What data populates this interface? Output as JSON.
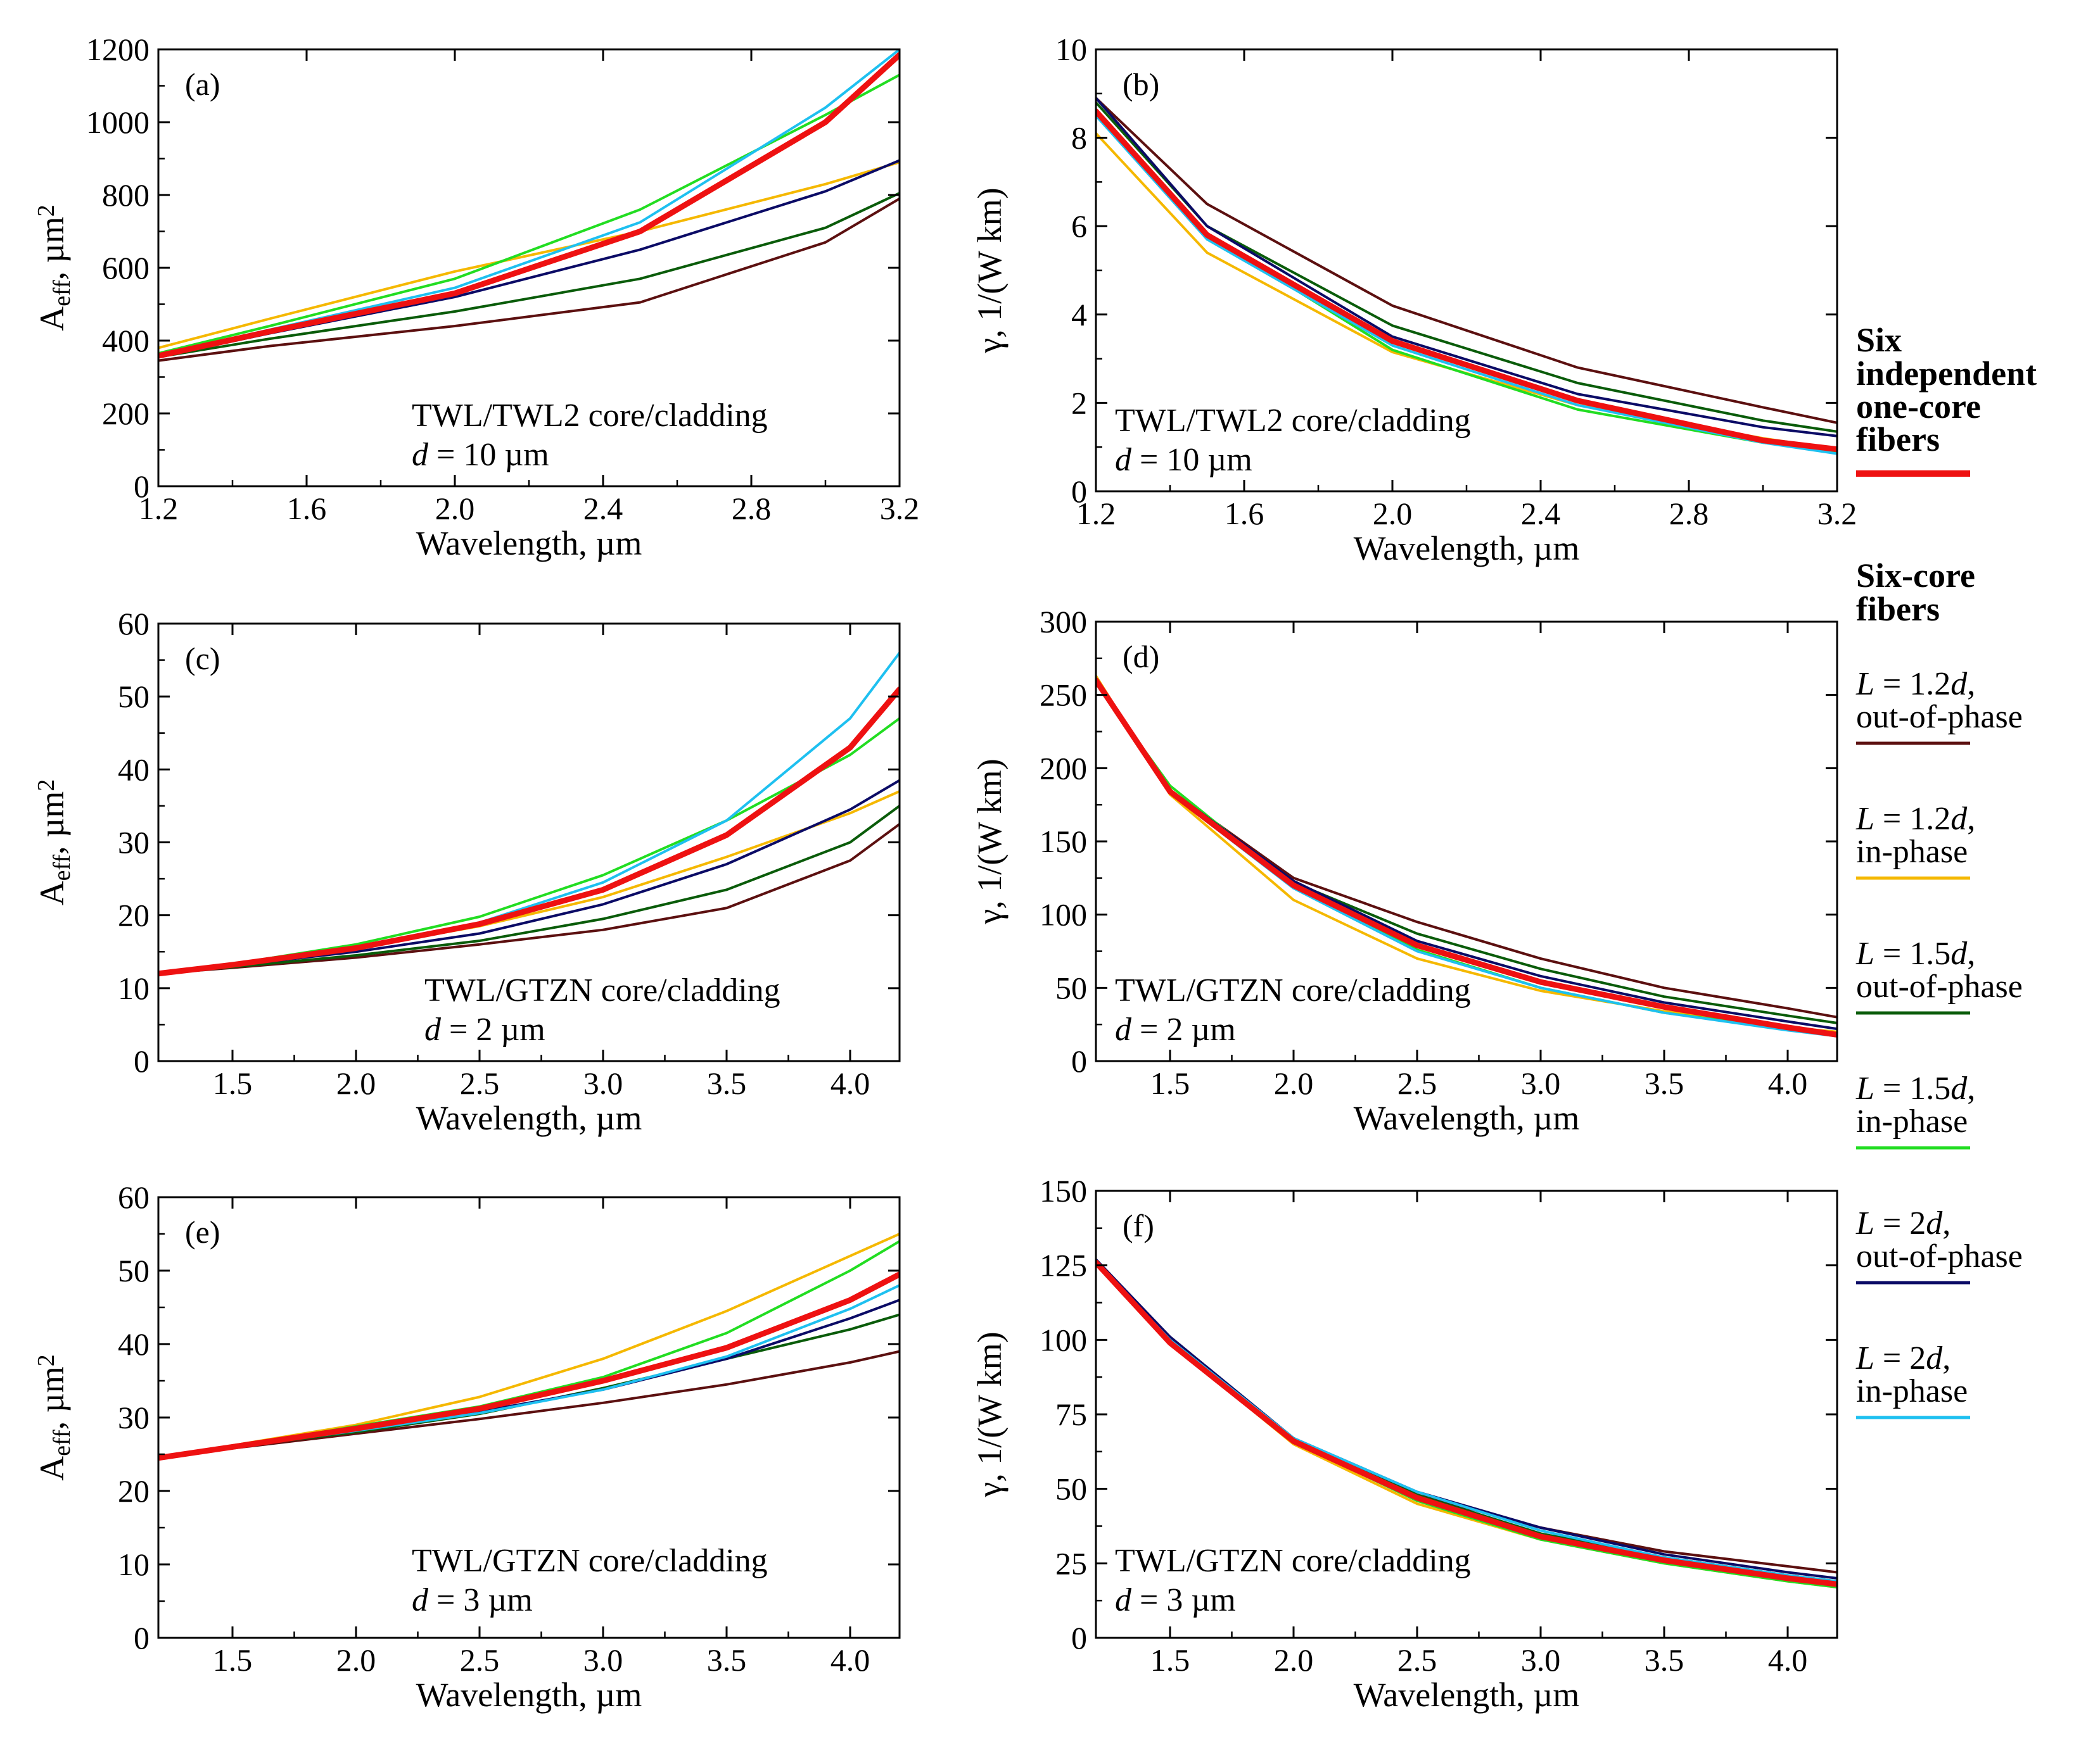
{
  "chart_data": [
    {
      "panel": "(a)",
      "type": "line",
      "xlabel": "Wavelength, µm",
      "ylabel": {
        "main": "A",
        "sub": "eff",
        "unit": ", µm",
        "sup": "2"
      },
      "xlim": [
        1.2,
        3.2
      ],
      "ylim": [
        0,
        1200
      ],
      "xticks": [
        1.2,
        1.6,
        2.0,
        2.4,
        2.8,
        3.2
      ],
      "xtick_labels": [
        "1.2",
        "1.6",
        "2.0",
        "2.4",
        "2.8",
        "3.2"
      ],
      "yticks": [
        0,
        200,
        400,
        600,
        800,
        1000,
        1200
      ],
      "ytick_labels": [
        "0",
        "200",
        "400",
        "600",
        "800",
        "1000",
        "1200"
      ],
      "annotation": {
        "line1": "TWL/TWL2 core/cladding",
        "line2_italic": "d",
        "line2_rest": " = 10 µm"
      },
      "x": [
        1.2,
        1.5,
        2.0,
        2.5,
        3.0,
        3.2
      ],
      "series": [
        {
          "name": "L = 1.2d, out-of-phase",
          "values": [
            345,
            385,
            440,
            505,
            670,
            790
          ]
        },
        {
          "name": "L = 1.2d, in-phase",
          "values": [
            380,
            460,
            590,
            700,
            830,
            890
          ]
        },
        {
          "name": "L = 1.5d, out-of-phase",
          "values": [
            355,
            405,
            480,
            570,
            710,
            805
          ]
        },
        {
          "name": "L = 1.5d, in-phase",
          "values": [
            365,
            440,
            570,
            760,
            1020,
            1130
          ]
        },
        {
          "name": "L = 2d, out-of-phase",
          "values": [
            355,
            420,
            520,
            650,
            810,
            895
          ]
        },
        {
          "name": "L = 2d, in-phase",
          "values": [
            360,
            430,
            545,
            725,
            1040,
            1200
          ]
        },
        {
          "name": "Six independent one-core fibers",
          "values": [
            358,
            425,
            530,
            700,
            1000,
            1185
          ]
        }
      ]
    },
    {
      "panel": "(b)",
      "type": "line",
      "xlabel": "Wavelength, µm",
      "ylabel": {
        "main": "γ, 1/(W km)"
      },
      "xlim": [
        1.2,
        3.2
      ],
      "ylim": [
        0,
        10
      ],
      "xticks": [
        1.2,
        1.6,
        2.0,
        2.4,
        2.8,
        3.2
      ],
      "xtick_labels": [
        "1.2",
        "1.6",
        "2.0",
        "2.4",
        "2.8",
        "3.2"
      ],
      "yticks": [
        0,
        2,
        4,
        6,
        8,
        10
      ],
      "ytick_labels": [
        "0",
        "2",
        "4",
        "6",
        "8",
        "10"
      ],
      "annotation": {
        "line1": "TWL/TWL2 core/cladding",
        "line2_italic": "d",
        "line2_rest": " = 10 µm"
      },
      "x": [
        1.2,
        1.5,
        2.0,
        2.5,
        3.0,
        3.2
      ],
      "series": [
        {
          "name": "L = 1.2d, out-of-phase",
          "values": [
            8.9,
            6.5,
            4.2,
            2.8,
            1.9,
            1.55
          ]
        },
        {
          "name": "L = 1.2d, in-phase",
          "values": [
            8.1,
            5.4,
            3.15,
            1.95,
            1.2,
            0.95
          ]
        },
        {
          "name": "L = 1.5d, out-of-phase",
          "values": [
            8.8,
            6.0,
            3.75,
            2.45,
            1.6,
            1.35
          ]
        },
        {
          "name": "L = 1.5d, in-phase",
          "values": [
            8.6,
            5.8,
            3.2,
            1.85,
            1.1,
            0.9
          ]
        },
        {
          "name": "L = 2d, out-of-phase",
          "values": [
            8.9,
            6.0,
            3.5,
            2.2,
            1.45,
            1.25
          ]
        },
        {
          "name": "L = 2d, in-phase",
          "values": [
            8.5,
            5.7,
            3.3,
            1.95,
            1.1,
            0.85
          ]
        },
        {
          "name": "Six independent one-core fibers",
          "values": [
            8.6,
            5.8,
            3.4,
            2.05,
            1.15,
            0.95
          ]
        }
      ]
    },
    {
      "panel": "(c)",
      "type": "line",
      "xlabel": "Wavelength, µm",
      "ylabel": {
        "main": "A",
        "sub": "eff",
        "unit": ", µm",
        "sup": "2"
      },
      "xlim": [
        1.2,
        4.2
      ],
      "ylim": [
        0,
        60
      ],
      "xticks": [
        1.5,
        2.0,
        2.5,
        3.0,
        3.5,
        4.0
      ],
      "xtick_labels": [
        "1.5",
        "2.0",
        "2.5",
        "3.0",
        "3.5",
        "4.0"
      ],
      "yticks": [
        0,
        10,
        20,
        30,
        40,
        50,
        60
      ],
      "ytick_labels": [
        "0",
        "10",
        "20",
        "30",
        "40",
        "50",
        "60"
      ],
      "annotation": {
        "line1": "TWL/GTZN core/cladding",
        "line2_italic": "d",
        "line2_rest": " = 2 µm"
      },
      "x": [
        1.2,
        1.5,
        2.0,
        2.5,
        3.0,
        3.5,
        4.0,
        4.2
      ],
      "series": [
        {
          "name": "L = 1.2d, out-of-phase",
          "values": [
            12,
            12.8,
            14.2,
            16,
            18,
            21,
            27.5,
            32.5
          ]
        },
        {
          "name": "L = 1.2d, in-phase",
          "values": [
            12,
            13.2,
            15.5,
            18.5,
            22.5,
            28,
            34,
            37
          ]
        },
        {
          "name": "L = 1.5d, out-of-phase",
          "values": [
            12,
            12.9,
            14.5,
            16.5,
            19.5,
            23.5,
            30,
            35
          ]
        },
        {
          "name": "L = 1.5d, in-phase",
          "values": [
            12,
            13.3,
            16,
            19.8,
            25.5,
            33,
            42,
            47
          ]
        },
        {
          "name": "L = 2d, out-of-phase",
          "values": [
            12,
            13.1,
            15,
            17.5,
            21.5,
            27,
            34.5,
            38.5
          ]
        },
        {
          "name": "L = 2d, in-phase",
          "values": [
            12,
            13.2,
            15.5,
            19,
            24.5,
            33,
            47,
            56
          ]
        },
        {
          "name": "Six independent one-core fibers",
          "values": [
            12,
            13.2,
            15.5,
            18.8,
            23.5,
            31,
            43,
            51
          ]
        }
      ]
    },
    {
      "panel": "(d)",
      "type": "line",
      "xlabel": "Wavelength, µm",
      "ylabel": {
        "main": "γ, 1/(W km)"
      },
      "xlim": [
        1.2,
        4.2
      ],
      "ylim": [
        0,
        300
      ],
      "xticks": [
        1.5,
        2.0,
        2.5,
        3.0,
        3.5,
        4.0
      ],
      "xtick_labels": [
        "1.5",
        "2.0",
        "2.5",
        "3.0",
        "3.5",
        "4.0"
      ],
      "yticks": [
        0,
        50,
        100,
        150,
        200,
        250,
        300
      ],
      "ytick_labels": [
        "0",
        "50",
        "100",
        "150",
        "200",
        "250",
        "300"
      ],
      "annotation": {
        "line1": "TWL/GTZN core/cladding",
        "line2_italic": "d",
        "line2_rest": " = 2 µm"
      },
      "x": [
        1.2,
        1.5,
        2.0,
        2.5,
        3.0,
        3.5,
        4.0,
        4.2
      ],
      "series": [
        {
          "name": "L = 1.2d, out-of-phase",
          "values": [
            262,
            185,
            125,
            95,
            70,
            50,
            36,
            30
          ]
        },
        {
          "name": "L = 1.2d, in-phase",
          "values": [
            263,
            182,
            110,
            70,
            48,
            34,
            23,
            20
          ]
        },
        {
          "name": "L = 1.5d, out-of-phase",
          "values": [
            260,
            185,
            122,
            87,
            63,
            44,
            31,
            26
          ]
        },
        {
          "name": "L = 1.5d, in-phase",
          "values": [
            258,
            188,
            120,
            76,
            50,
            33,
            22,
            18
          ]
        },
        {
          "name": "L = 2d, out-of-phase",
          "values": [
            260,
            185,
            123,
            82,
            58,
            40,
            27,
            22
          ]
        },
        {
          "name": "L = 2d, in-phase",
          "values": [
            258,
            183,
            118,
            75,
            50,
            33,
            21,
            17
          ]
        },
        {
          "name": "Six independent one-core fibers",
          "values": [
            260,
            184,
            120,
            79,
            54,
            37,
            23,
            18
          ]
        }
      ]
    },
    {
      "panel": "(e)",
      "type": "line",
      "xlabel": "Wavelength, µm",
      "ylabel": {
        "main": "A",
        "sub": "eff",
        "unit": ", µm",
        "sup": "2"
      },
      "xlim": [
        1.2,
        4.2
      ],
      "ylim": [
        0,
        60
      ],
      "xticks": [
        1.5,
        2.0,
        2.5,
        3.0,
        3.5,
        4.0
      ],
      "xtick_labels": [
        "1.5",
        "2.0",
        "2.5",
        "3.0",
        "3.5",
        "4.0"
      ],
      "yticks": [
        0,
        10,
        20,
        30,
        40,
        50,
        60
      ],
      "ytick_labels": [
        "0",
        "10",
        "20",
        "30",
        "40",
        "50",
        "60"
      ],
      "annotation": {
        "line1": "TWL/GTZN core/cladding",
        "line2_italic": "d",
        "line2_rest": " = 3 µm"
      },
      "x": [
        1.2,
        1.5,
        2.0,
        2.5,
        3.0,
        3.5,
        4.0,
        4.2
      ],
      "series": [
        {
          "name": "L = 1.2d, out-of-phase",
          "values": [
            24.5,
            25.8,
            27.8,
            29.8,
            32,
            34.5,
            37.5,
            39
          ]
        },
        {
          "name": "L = 1.2d, in-phase",
          "values": [
            24.5,
            26.2,
            29,
            32.8,
            38,
            44.5,
            52,
            55
          ]
        },
        {
          "name": "L = 1.5d, out-of-phase",
          "values": [
            24.5,
            26,
            28,
            30.5,
            34,
            38,
            42,
            44
          ]
        },
        {
          "name": "L = 1.5d, in-phase",
          "values": [
            24.5,
            26,
            28.8,
            31.5,
            35.5,
            41.5,
            50,
            54
          ]
        },
        {
          "name": "L = 2d, out-of-phase",
          "values": [
            24.5,
            26,
            28.2,
            30.8,
            33.8,
            38,
            43.5,
            46
          ]
        },
        {
          "name": "L = 2d, in-phase",
          "values": [
            24.5,
            26,
            28.2,
            30.6,
            33.8,
            38.3,
            44.8,
            48
          ]
        },
        {
          "name": "Six independent one-core fibers",
          "values": [
            24.5,
            26,
            28.5,
            31.2,
            35,
            39.5,
            46,
            49.5
          ]
        }
      ]
    },
    {
      "panel": "(f)",
      "type": "line",
      "xlabel": "Wavelength, µm",
      "ylabel": {
        "main": "γ, 1/(W km)"
      },
      "xlim": [
        1.2,
        4.2
      ],
      "ylim": [
        0,
        150
      ],
      "xticks": [
        1.5,
        2.0,
        2.5,
        3.0,
        3.5,
        4.0
      ],
      "xtick_labels": [
        "1.5",
        "2.0",
        "2.5",
        "3.0",
        "3.5",
        "4.0"
      ],
      "yticks": [
        0,
        25,
        50,
        75,
        100,
        125,
        150
      ],
      "ytick_labels": [
        "0",
        "25",
        "50",
        "75",
        "100",
        "125",
        "150"
      ],
      "annotation": {
        "line1": "TWL/GTZN core/cladding",
        "line2_italic": "d",
        "line2_rest": " = 3 µm"
      },
      "x": [
        1.2,
        1.5,
        2.0,
        2.5,
        3.0,
        3.5,
        4.0,
        4.2
      ],
      "series": [
        {
          "name": "L = 1.2d, out-of-phase",
          "values": [
            126,
            100,
            67,
            48,
            37,
            29,
            24,
            22
          ]
        },
        {
          "name": "L = 1.2d, in-phase",
          "values": [
            126,
            99,
            65,
            45,
            33,
            25,
            19,
            17
          ]
        },
        {
          "name": "L = 1.5d, out-of-phase",
          "values": [
            126,
            100,
            67,
            48,
            35,
            27,
            21,
            19
          ]
        },
        {
          "name": "L = 1.5d, in-phase",
          "values": [
            126,
            99,
            66,
            46,
            33,
            25,
            19,
            17
          ]
        },
        {
          "name": "L = 2d, out-of-phase",
          "values": [
            127,
            101,
            67,
            49,
            37,
            28,
            22,
            20
          ]
        },
        {
          "name": "L = 2d, in-phase",
          "values": [
            126,
            100,
            67,
            49,
            36,
            27,
            21,
            19
          ]
        },
        {
          "name": "Six independent one-core fibers",
          "values": [
            126,
            99,
            66,
            47,
            34,
            26,
            20,
            18
          ]
        }
      ]
    }
  ],
  "series_styles": [
    {
      "name": "L = 1.2d, out-of-phase",
      "color": "#5c1010",
      "width": 4
    },
    {
      "name": "L = 1.2d, in-phase",
      "color": "#f5b800",
      "width": 4
    },
    {
      "name": "L = 1.5d, out-of-phase",
      "color": "#0a5c0a",
      "width": 4
    },
    {
      "name": "L = 1.5d, in-phase",
      "color": "#22dd22",
      "width": 4
    },
    {
      "name": "L = 2d, out-of-phase",
      "color": "#0b0b66",
      "width": 4
    },
    {
      "name": "L = 2d, in-phase",
      "color": "#1ec0f0",
      "width": 4
    },
    {
      "name": "Six independent one-core fibers",
      "color": "#ee1111",
      "width": 9
    }
  ],
  "legend": {
    "header1": [
      "Six",
      "independent",
      "one-core",
      "fibers"
    ],
    "header2": [
      "Six-core",
      "fibers"
    ],
    "items": [
      {
        "italic": "L",
        "eq": " = 1.2",
        "italic2": "d",
        "comma": ",",
        "line2": "out-of-phase"
      },
      {
        "italic": "L",
        "eq": " = 1.2",
        "italic2": "d",
        "comma": ",",
        "line2": "in-phase"
      },
      {
        "italic": "L",
        "eq": " = 1.5",
        "italic2": "d",
        "comma": ",",
        "line2": "out-of-phase"
      },
      {
        "italic": "L",
        "eq": " = 1.5",
        "italic2": "d",
        "comma": ",",
        "line2": "in-phase"
      },
      {
        "italic": "L",
        "eq": " = 2",
        "italic2": "d",
        "comma": ",",
        "line2": "out-of-phase"
      },
      {
        "italic": "L",
        "eq": " = 2",
        "italic2": "d",
        "comma": ",",
        "line2": "in-phase"
      }
    ]
  }
}
